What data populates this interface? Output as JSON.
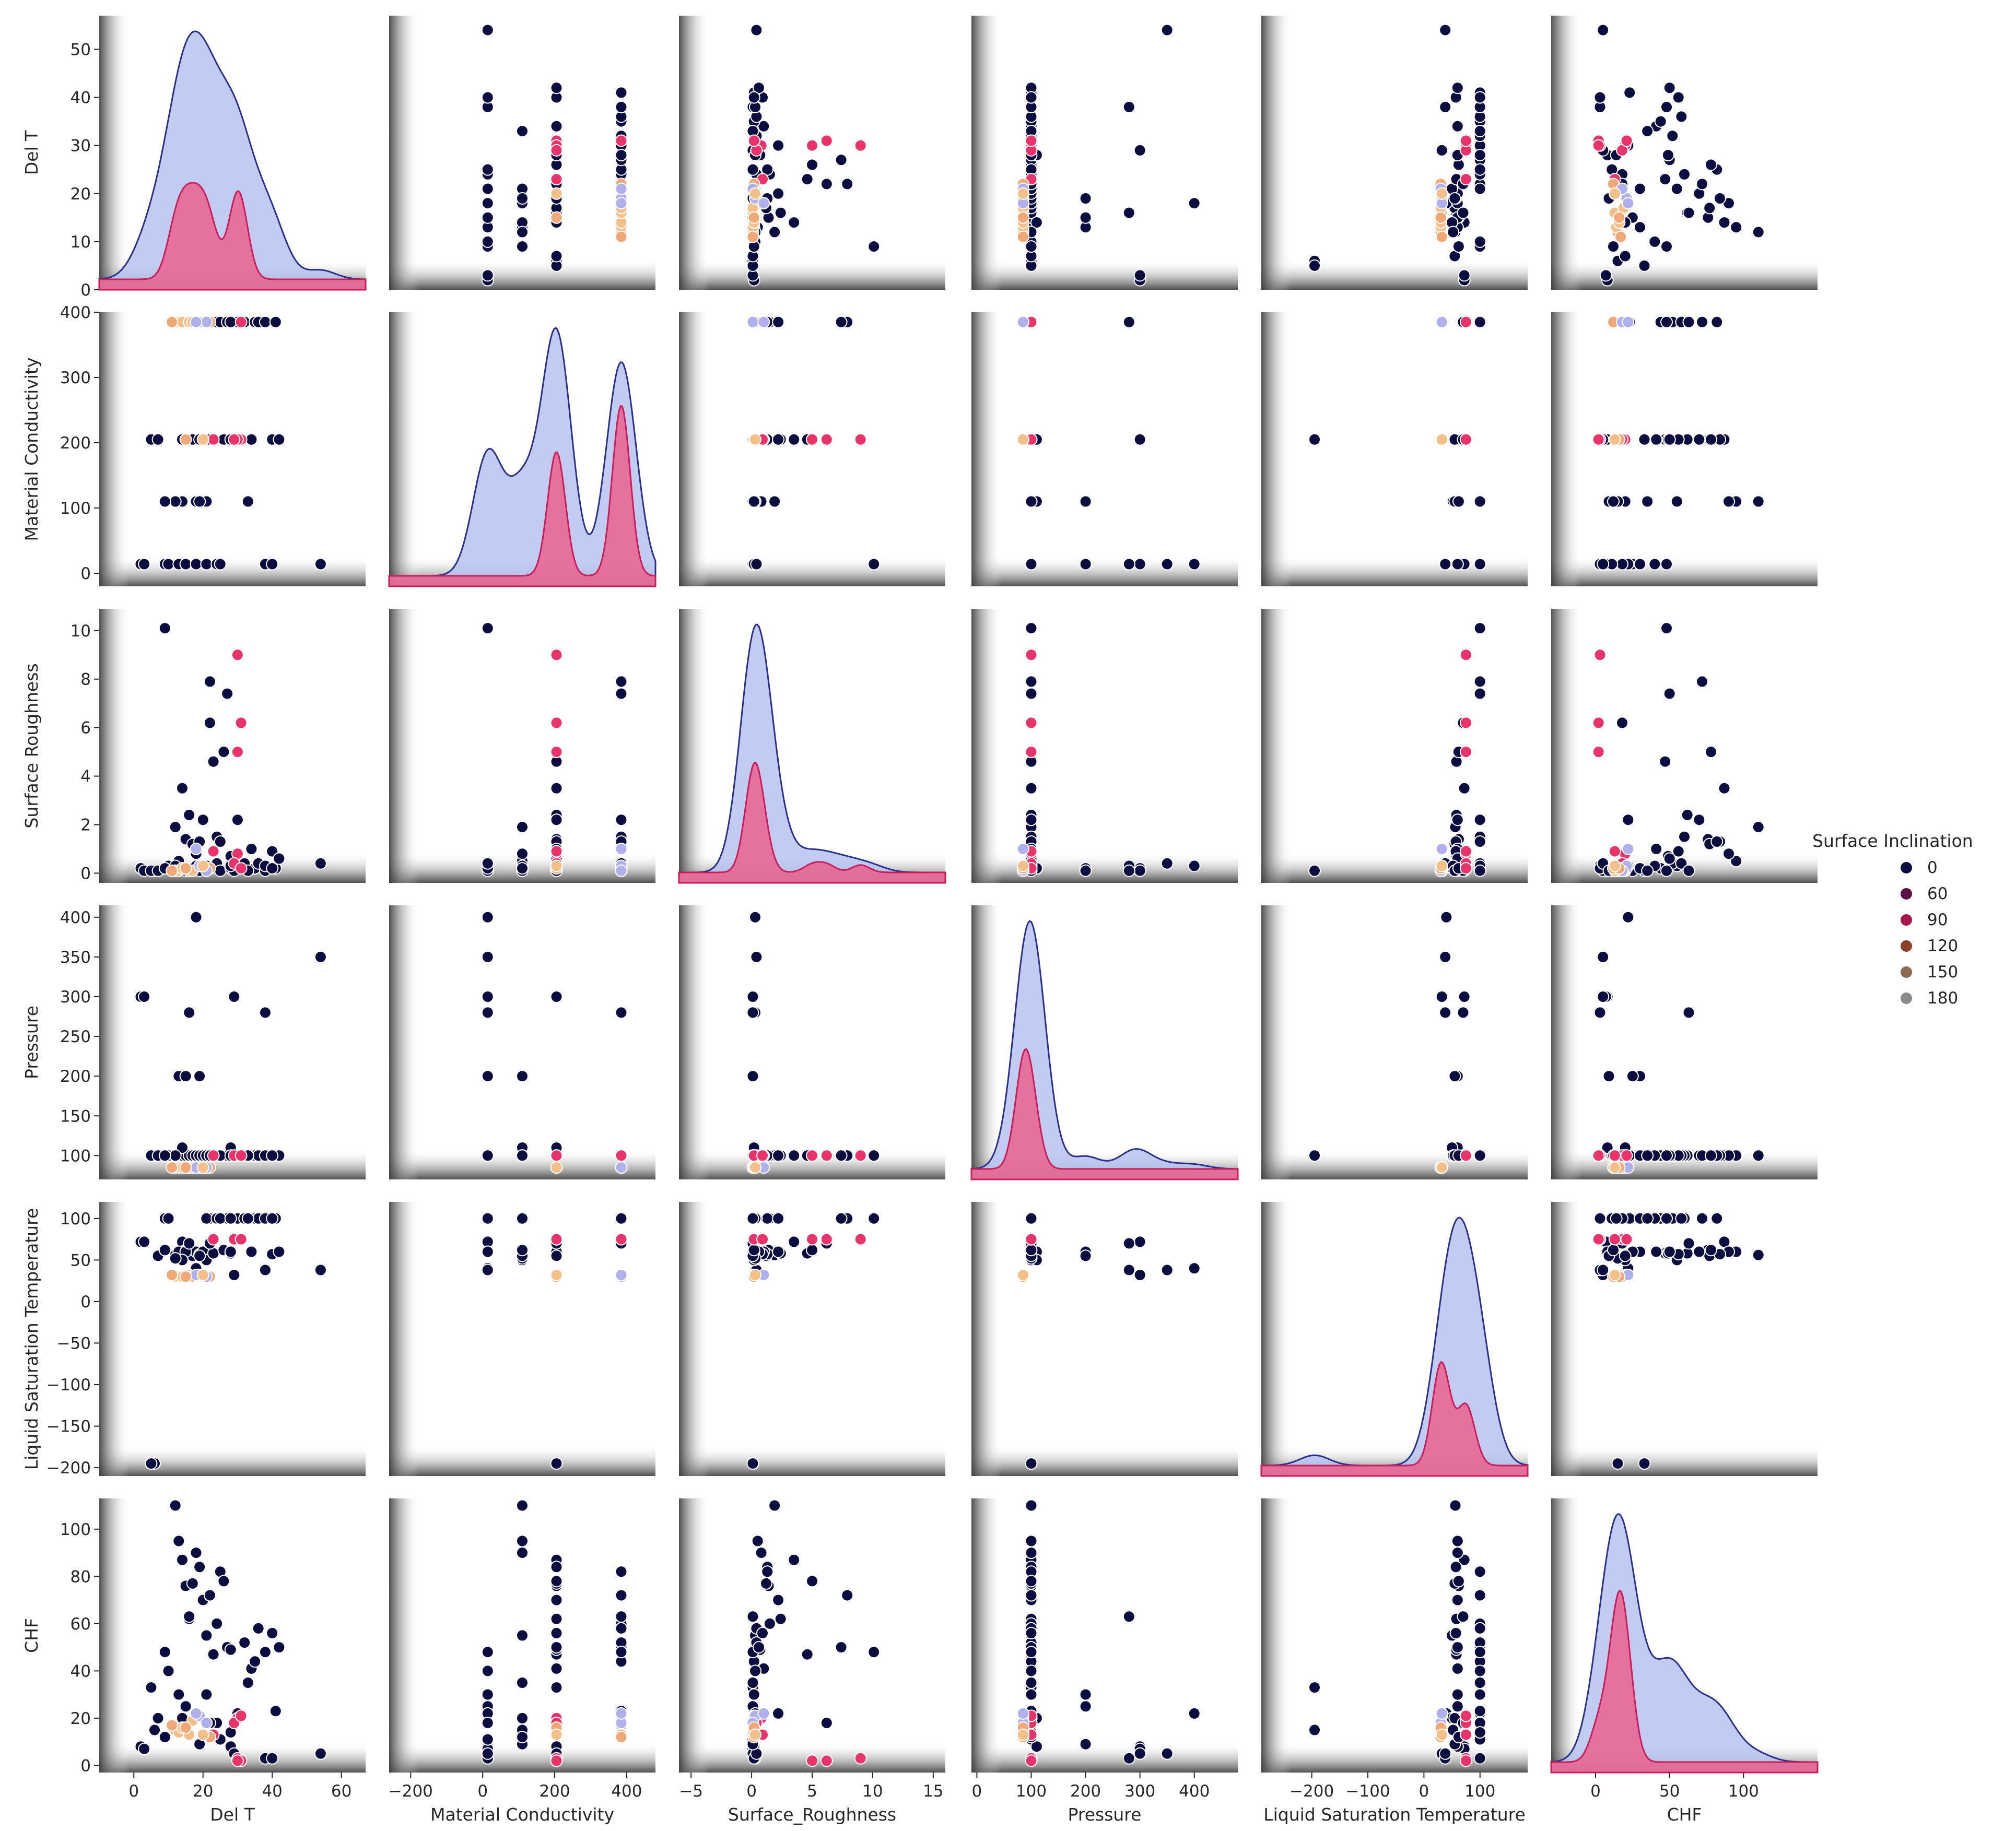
{
  "chart_data": {
    "type": "scatter",
    "variables": [
      "Del T",
      "Material Conductivity",
      "Surface_Roughness",
      "Pressure",
      "Liquid Saturation Temperature",
      "CHF"
    ],
    "row_labels": [
      "Del T",
      "Material Conductivity",
      "Surface  Roughness",
      "Pressure",
      "Liquid Saturation Temperature",
      "CHF"
    ],
    "col_labels": [
      "Del T",
      "Material Conductivity",
      "Surface_Roughness",
      "Pressure",
      "Liquid Saturation Temperature",
      "CHF"
    ],
    "x_ticks": [
      [
        0,
        20,
        40,
        60
      ],
      [
        -200,
        0,
        200,
        400
      ],
      [
        -5,
        0,
        5,
        10,
        15
      ],
      [
        0,
        100,
        200,
        300,
        400
      ],
      [
        -200,
        -100,
        0,
        100
      ],
      [
        0,
        50,
        100
      ]
    ],
    "y_ticks": [
      [
        0,
        10,
        20,
        30,
        40,
        50
      ],
      [
        0,
        100,
        200,
        300,
        400
      ],
      [
        0,
        2,
        4,
        6,
        8,
        10
      ],
      [
        100,
        150,
        200,
        250,
        300,
        350,
        400
      ],
      [
        -200,
        -150,
        -100,
        -50,
        0,
        50,
        100
      ],
      [
        0,
        20,
        40,
        60,
        80,
        100
      ]
    ],
    "x_ranges": [
      [
        -10,
        67
      ],
      [
        -260,
        480
      ],
      [
        -6,
        16
      ],
      [
        -10,
        480
      ],
      [
        -290,
        185
      ],
      [
        -30,
        150
      ]
    ],
    "y_ranges": [
      [
        0,
        57
      ],
      [
        -20,
        400
      ],
      [
        -0.4,
        10.9
      ],
      [
        70,
        415
      ],
      [
        -210,
        120
      ],
      [
        -3,
        113
      ]
    ],
    "legend": {
      "title": "Surface Inclination",
      "placement": "center-right",
      "entries": [
        {
          "label": "0",
          "color": "#0b0d40"
        },
        {
          "label": "60",
          "color": "#5b1042"
        },
        {
          "label": "90",
          "color": "#a8164e"
        },
        {
          "label": "120",
          "color": "#8c3f2a"
        },
        {
          "label": "150",
          "color": "#8f6a52"
        },
        {
          "label": "180",
          "color": "#8a8a8a"
        }
      ]
    },
    "hue_colors": {
      "0": "#0b0d40",
      "60": "#e8336b",
      "90": "#e8336b",
      "120": "#f0a878",
      "150": "#f4c08a",
      "180": "#b0b0ec"
    },
    "kde_fill_main": "#b7c3f0",
    "kde_line_main": "#2a2f8a",
    "kde_fill_accent": "#ee5a8a",
    "kde_line_accent": "#c81d59",
    "records": [
      [
        2,
        14,
        0.2,
        300,
        72,
        8,
        0
      ],
      [
        3,
        14,
        0.1,
        300,
        72,
        7,
        0
      ],
      [
        6,
        205,
        0.1,
        100,
        -195,
        15,
        0
      ],
      [
        5,
        205,
        0.1,
        100,
        -195,
        33,
        0
      ],
      [
        12,
        110,
        1.9,
        100,
        56,
        110,
        0
      ],
      [
        13,
        110,
        0.5,
        100,
        60,
        95,
        0
      ],
      [
        14,
        205,
        3.5,
        100,
        72,
        87,
        0
      ],
      [
        15,
        205,
        1.4,
        100,
        62,
        76,
        0
      ],
      [
        16,
        205,
        2.4,
        100,
        58,
        62,
        0
      ],
      [
        17,
        205,
        1.2,
        100,
        55,
        77,
        0
      ],
      [
        18,
        110,
        0.8,
        100,
        60,
        90,
        0
      ],
      [
        19,
        205,
        1.3,
        100,
        57,
        84,
        0
      ],
      [
        20,
        205,
        2.2,
        100,
        60,
        70,
        0
      ],
      [
        21,
        110,
        0.3,
        100,
        50,
        55,
        0
      ],
      [
        22,
        385,
        7.9,
        100,
        100,
        72,
        0
      ],
      [
        23,
        205,
        4.6,
        100,
        58,
        47,
        0
      ],
      [
        24,
        385,
        1.5,
        100,
        100,
        60,
        0
      ],
      [
        25,
        385,
        1.3,
        100,
        100,
        82,
        0
      ],
      [
        26,
        205,
        5.0,
        100,
        62,
        78,
        0
      ],
      [
        27,
        385,
        7.4,
        100,
        100,
        50,
        0
      ],
      [
        28,
        205,
        0.7,
        100,
        58,
        49,
        0
      ],
      [
        30,
        385,
        2.2,
        100,
        100,
        22,
        0
      ],
      [
        32,
        385,
        0.4,
        100,
        100,
        52,
        0
      ],
      [
        34,
        205,
        1.0,
        100,
        60,
        41,
        0
      ],
      [
        35,
        385,
        0.2,
        100,
        100,
        44,
        0
      ],
      [
        36,
        385,
        0.4,
        100,
        100,
        58,
        0
      ],
      [
        38,
        385,
        0.1,
        100,
        100,
        48,
        0
      ],
      [
        40,
        205,
        0.9,
        100,
        57,
        56,
        0
      ],
      [
        41,
        385,
        0.2,
        100,
        100,
        23,
        0
      ],
      [
        42,
        205,
        0.6,
        100,
        60,
        50,
        0
      ],
      [
        9,
        14,
        10.1,
        100,
        100,
        48,
        0
      ],
      [
        10,
        14,
        0.3,
        100,
        100,
        40,
        0
      ],
      [
        13,
        14,
        0.2,
        200,
        60,
        30,
        0
      ],
      [
        15,
        14,
        0.1,
        200,
        60,
        25,
        0
      ],
      [
        18,
        14,
        0.3,
        400,
        40,
        22,
        0
      ],
      [
        21,
        14,
        0.2,
        100,
        100,
        30,
        0
      ],
      [
        24,
        14,
        0.4,
        100,
        100,
        18,
        0
      ],
      [
        25,
        14,
        0.1,
        100,
        100,
        11,
        0
      ],
      [
        28,
        205,
        0.2,
        110,
        60,
        8,
        0
      ],
      [
        29,
        205,
        0.1,
        300,
        32,
        5,
        0
      ],
      [
        38,
        14,
        0.3,
        280,
        38,
        3,
        0
      ],
      [
        40,
        14,
        0.2,
        100,
        100,
        3,
        0
      ],
      [
        54,
        14,
        0.4,
        350,
        38,
        5,
        0
      ],
      [
        16,
        385,
        0.1,
        280,
        70,
        63,
        0
      ],
      [
        14,
        110,
        0.2,
        110,
        50,
        20,
        0
      ],
      [
        12,
        110,
        0.3,
        100,
        52,
        15,
        0
      ],
      [
        28,
        385,
        0.3,
        100,
        100,
        14,
        0
      ],
      [
        19,
        110,
        0.1,
        200,
        55,
        9,
        0
      ],
      [
        7,
        205,
        0.1,
        100,
        55,
        20,
        0
      ],
      [
        33,
        110,
        0.1,
        100,
        100,
        35,
        0
      ],
      [
        22,
        205,
        6.2,
        100,
        70,
        18,
        0
      ],
      [
        9,
        110,
        0.2,
        100,
        62,
        12,
        0
      ],
      [
        30,
        205,
        9.0,
        100,
        75,
        3,
        90
      ],
      [
        31,
        205,
        6.2,
        100,
        75,
        2,
        90
      ],
      [
        30,
        205,
        5.0,
        100,
        75,
        2,
        90
      ],
      [
        30,
        205,
        0.8,
        100,
        75,
        20,
        90
      ],
      [
        29,
        205,
        0.4,
        100,
        75,
        18,
        90
      ],
      [
        31,
        385,
        0.2,
        100,
        75,
        21,
        60
      ],
      [
        23,
        205,
        0.9,
        100,
        75,
        13,
        90
      ],
      [
        12,
        385,
        0.1,
        85,
        30,
        15,
        120
      ],
      [
        13,
        385,
        0.1,
        85,
        30,
        14,
        150
      ],
      [
        14,
        385,
        0.2,
        85,
        30,
        16,
        150
      ],
      [
        11,
        385,
        0.1,
        85,
        32,
        17,
        120
      ],
      [
        16,
        385,
        0.1,
        85,
        32,
        13,
        150
      ],
      [
        22,
        385,
        0.2,
        85,
        30,
        12,
        120
      ],
      [
        17,
        385,
        0.1,
        85,
        30,
        19,
        150
      ],
      [
        19,
        385,
        0.3,
        85,
        32,
        21,
        180
      ],
      [
        21,
        385,
        0.1,
        85,
        30,
        18,
        180
      ],
      [
        18,
        385,
        1.0,
        85,
        32,
        22,
        180
      ],
      [
        15,
        205,
        0.2,
        85,
        30,
        16,
        120
      ],
      [
        20,
        205,
        0.3,
        85,
        32,
        13,
        150
      ]
    ]
  }
}
